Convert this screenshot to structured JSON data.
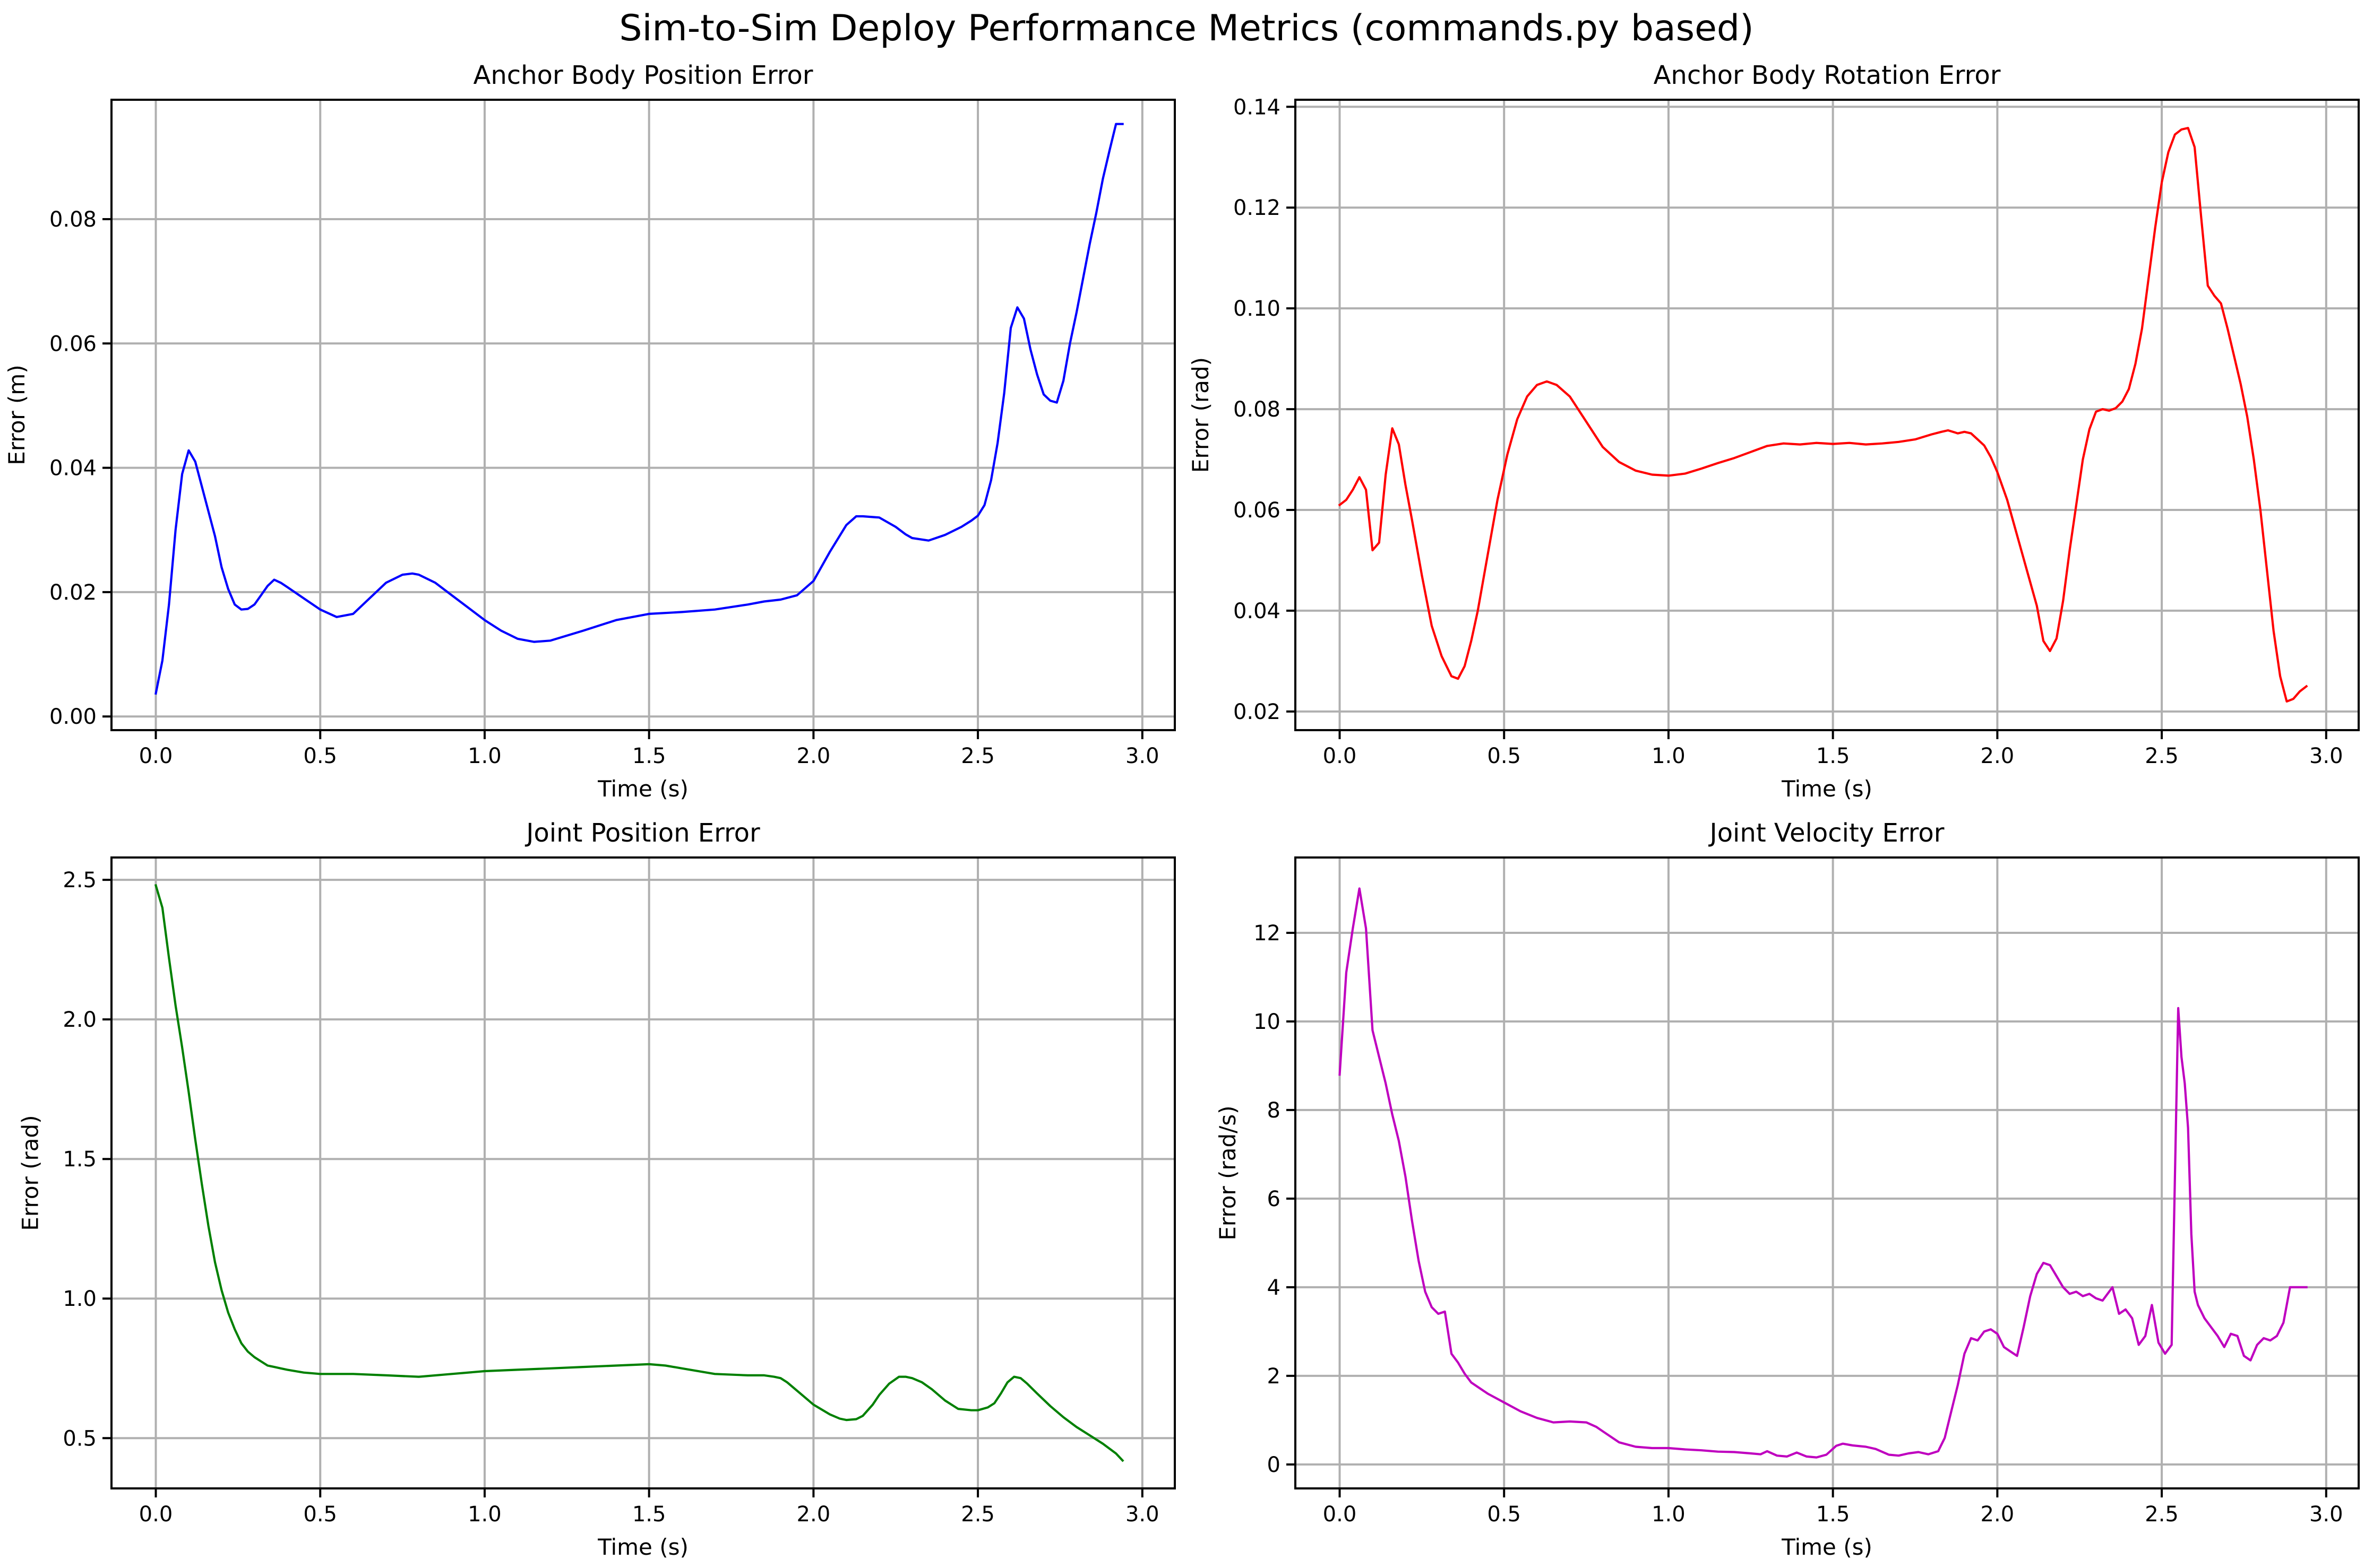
{
  "figure": {
    "suptitle": "Sim-to-Sim Deploy Performance Metrics (commands.py based)"
  },
  "chart_data": [
    {
      "type": "line",
      "title": "Anchor Body Position Error",
      "xlabel": "Time (s)",
      "ylabel": "Error (m)",
      "xlim": [
        -0.1348,
        3.0988
      ],
      "ylim": [
        -0.0022,
        0.0992
      ],
      "xticks": [
        "0.0",
        "0.5",
        "1.0",
        "1.5",
        "2.0",
        "2.5",
        "3.0"
      ],
      "yticks": [
        "0.00",
        "0.02",
        "0.04",
        "0.06",
        "0.08"
      ],
      "grid": true,
      "color": "#0000ff",
      "series": [
        {
          "x": [
            0.0,
            0.02,
            0.04,
            0.06,
            0.08,
            0.1,
            0.12,
            0.14,
            0.16,
            0.18,
            0.2,
            0.22,
            0.24,
            0.26,
            0.28,
            0.3,
            0.32,
            0.34,
            0.36,
            0.38,
            0.4,
            0.45,
            0.5,
            0.55,
            0.6,
            0.65,
            0.7,
            0.75,
            0.78,
            0.8,
            0.85,
            0.9,
            0.95,
            1.0,
            1.05,
            1.1,
            1.15,
            1.2,
            1.3,
            1.4,
            1.5,
            1.6,
            1.7,
            1.8,
            1.85,
            1.9,
            1.95,
            2.0,
            2.05,
            2.1,
            2.13,
            2.15,
            2.2,
            2.25,
            2.28,
            2.3,
            2.35,
            2.4,
            2.45,
            2.48,
            2.5,
            2.52,
            2.54,
            2.56,
            2.58,
            2.6,
            2.62,
            2.64,
            2.66,
            2.68,
            2.7,
            2.72,
            2.74,
            2.76,
            2.78,
            2.8,
            2.82,
            2.84,
            2.86,
            2.88,
            2.9,
            2.92,
            2.94
          ],
          "y": [
            0.0037,
            0.009,
            0.018,
            0.03,
            0.039,
            0.0428,
            0.041,
            0.037,
            0.033,
            0.029,
            0.024,
            0.0205,
            0.018,
            0.0172,
            0.0173,
            0.018,
            0.0195,
            0.021,
            0.022,
            0.0215,
            0.0208,
            0.019,
            0.0172,
            0.016,
            0.0165,
            0.019,
            0.0215,
            0.0228,
            0.023,
            0.0228,
            0.0215,
            0.0195,
            0.0175,
            0.0155,
            0.0138,
            0.0125,
            0.012,
            0.0122,
            0.0138,
            0.0155,
            0.0165,
            0.0168,
            0.0172,
            0.018,
            0.0185,
            0.0188,
            0.0195,
            0.0218,
            0.0265,
            0.0308,
            0.0322,
            0.0322,
            0.032,
            0.0305,
            0.0293,
            0.0287,
            0.0283,
            0.0292,
            0.0305,
            0.0315,
            0.0323,
            0.034,
            0.038,
            0.044,
            0.052,
            0.0625,
            0.0658,
            0.064,
            0.059,
            0.055,
            0.0518,
            0.0508,
            0.0505,
            0.054,
            0.06,
            0.065,
            0.0705,
            0.076,
            0.081,
            0.0865,
            0.091,
            0.0953,
            0.0953
          ]
        }
      ]
    },
    {
      "type": "line",
      "title": "Anchor Body Rotation Error",
      "xlabel": "Time (s)",
      "ylabel": "Error (rad)",
      "xlim": [
        -0.1348,
        3.0988
      ],
      "ylim": [
        0.0163,
        0.1414
      ],
      "xticks": [
        "0.0",
        "0.5",
        "1.0",
        "1.5",
        "2.0",
        "2.5",
        "3.0"
      ],
      "yticks": [
        "0.02",
        "0.04",
        "0.06",
        "0.08",
        "0.10",
        "0.12",
        "0.14"
      ],
      "grid": true,
      "color": "#ff0000",
      "series": [
        {
          "x": [
            0.0,
            0.02,
            0.04,
            0.06,
            0.08,
            0.1,
            0.12,
            0.14,
            0.16,
            0.18,
            0.2,
            0.22,
            0.25,
            0.28,
            0.31,
            0.34,
            0.36,
            0.38,
            0.4,
            0.42,
            0.45,
            0.48,
            0.51,
            0.54,
            0.57,
            0.6,
            0.63,
            0.66,
            0.7,
            0.75,
            0.8,
            0.85,
            0.9,
            0.95,
            1.0,
            1.05,
            1.1,
            1.15,
            1.2,
            1.25,
            1.3,
            1.35,
            1.4,
            1.45,
            1.5,
            1.55,
            1.6,
            1.65,
            1.7,
            1.75,
            1.8,
            1.83,
            1.85,
            1.88,
            1.9,
            1.92,
            1.94,
            1.96,
            1.98,
            2.0,
            2.03,
            2.06,
            2.09,
            2.12,
            2.14,
            2.16,
            2.18,
            2.2,
            2.22,
            2.24,
            2.26,
            2.28,
            2.3,
            2.32,
            2.34,
            2.36,
            2.38,
            2.4,
            2.42,
            2.44,
            2.46,
            2.48,
            2.5,
            2.52,
            2.54,
            2.56,
            2.58,
            2.6,
            2.62,
            2.64,
            2.66,
            2.68,
            2.7,
            2.72,
            2.74,
            2.76,
            2.78,
            2.8,
            2.82,
            2.84,
            2.86,
            2.88,
            2.9,
            2.92,
            2.94
          ],
          "y": [
            0.061,
            0.062,
            0.064,
            0.0665,
            0.064,
            0.052,
            0.0535,
            0.067,
            0.0762,
            0.073,
            0.065,
            0.058,
            0.047,
            0.037,
            0.031,
            0.027,
            0.0265,
            0.029,
            0.034,
            0.04,
            0.051,
            0.062,
            0.071,
            0.078,
            0.0825,
            0.0848,
            0.0855,
            0.0848,
            0.0825,
            0.0775,
            0.0725,
            0.0695,
            0.0678,
            0.067,
            0.0668,
            0.0672,
            0.0682,
            0.0693,
            0.0703,
            0.0715,
            0.0727,
            0.0732,
            0.073,
            0.0733,
            0.0731,
            0.0733,
            0.073,
            0.0732,
            0.0735,
            0.074,
            0.075,
            0.0755,
            0.0758,
            0.0752,
            0.0755,
            0.0752,
            0.074,
            0.0728,
            0.0705,
            0.0675,
            0.062,
            0.055,
            0.048,
            0.041,
            0.034,
            0.032,
            0.0345,
            0.042,
            0.052,
            0.061,
            0.07,
            0.076,
            0.0795,
            0.08,
            0.0797,
            0.0802,
            0.0815,
            0.084,
            0.089,
            0.096,
            0.106,
            0.116,
            0.125,
            0.131,
            0.1345,
            0.1355,
            0.1358,
            0.132,
            0.118,
            0.1045,
            0.1025,
            0.101,
            0.096,
            0.0905,
            0.085,
            0.0785,
            0.07,
            0.06,
            0.048,
            0.036,
            0.027,
            0.022,
            0.0225,
            0.024,
            0.025
          ]
        }
      ]
    },
    {
      "type": "line",
      "title": "Joint Position Error",
      "xlabel": "Time (s)",
      "ylabel": "Error (rad)",
      "xlim": [
        -0.1348,
        3.0988
      ],
      "ylim": [
        0.32,
        2.58
      ],
      "xticks": [
        "0.0",
        "0.5",
        "1.0",
        "1.5",
        "2.0",
        "2.5",
        "3.0"
      ],
      "yticks": [
        "0.5",
        "1.0",
        "1.5",
        "2.0",
        "2.5"
      ],
      "grid": true,
      "color": "#008000",
      "series": [
        {
          "x": [
            0.0,
            0.02,
            0.04,
            0.06,
            0.08,
            0.1,
            0.12,
            0.14,
            0.16,
            0.18,
            0.2,
            0.22,
            0.24,
            0.26,
            0.28,
            0.3,
            0.32,
            0.34,
            0.36,
            0.38,
            0.4,
            0.45,
            0.5,
            0.55,
            0.6,
            0.7,
            0.8,
            0.9,
            1.0,
            1.1,
            1.2,
            1.3,
            1.4,
            1.5,
            1.55,
            1.6,
            1.7,
            1.8,
            1.85,
            1.88,
            1.9,
            1.92,
            1.95,
            2.0,
            2.05,
            2.08,
            2.1,
            2.13,
            2.15,
            2.18,
            2.2,
            2.23,
            2.26,
            2.28,
            2.3,
            2.33,
            2.36,
            2.4,
            2.44,
            2.48,
            2.5,
            2.53,
            2.55,
            2.57,
            2.59,
            2.61,
            2.63,
            2.65,
            2.68,
            2.72,
            2.76,
            2.8,
            2.84,
            2.88,
            2.92,
            2.94
          ],
          "y": [
            2.48,
            2.4,
            2.22,
            2.05,
            1.9,
            1.74,
            1.57,
            1.41,
            1.26,
            1.13,
            1.03,
            0.95,
            0.89,
            0.84,
            0.81,
            0.79,
            0.775,
            0.76,
            0.755,
            0.75,
            0.745,
            0.735,
            0.73,
            0.73,
            0.73,
            0.725,
            0.72,
            0.73,
            0.74,
            0.745,
            0.75,
            0.755,
            0.76,
            0.765,
            0.76,
            0.75,
            0.73,
            0.725,
            0.725,
            0.72,
            0.715,
            0.7,
            0.67,
            0.62,
            0.585,
            0.57,
            0.565,
            0.568,
            0.58,
            0.62,
            0.655,
            0.695,
            0.72,
            0.72,
            0.715,
            0.7,
            0.675,
            0.635,
            0.605,
            0.6,
            0.6,
            0.61,
            0.625,
            0.66,
            0.7,
            0.72,
            0.715,
            0.695,
            0.66,
            0.615,
            0.575,
            0.54,
            0.51,
            0.48,
            0.445,
            0.42
          ]
        }
      ]
    },
    {
      "type": "line",
      "title": "Joint Velocity Error",
      "xlabel": "Time (s)",
      "ylabel": "Error (rad/s)",
      "xlim": [
        -0.1348,
        3.0988
      ],
      "ylim": [
        -0.54,
        13.7
      ],
      "xticks": [
        "0.0",
        "0.5",
        "1.0",
        "1.5",
        "2.0",
        "2.5",
        "3.0"
      ],
      "yticks": [
        "0",
        "2",
        "4",
        "6",
        "8",
        "10",
        "12"
      ],
      "grid": true,
      "color": "#bf00bf",
      "series": [
        {
          "x": [
            0.0,
            0.02,
            0.04,
            0.06,
            0.08,
            0.1,
            0.12,
            0.14,
            0.16,
            0.18,
            0.2,
            0.22,
            0.24,
            0.26,
            0.28,
            0.3,
            0.32,
            0.34,
            0.36,
            0.38,
            0.4,
            0.45,
            0.5,
            0.55,
            0.6,
            0.65,
            0.7,
            0.75,
            0.78,
            0.8,
            0.85,
            0.9,
            0.95,
            1.0,
            1.05,
            1.1,
            1.15,
            1.2,
            1.25,
            1.28,
            1.3,
            1.33,
            1.36,
            1.39,
            1.42,
            1.45,
            1.48,
            1.51,
            1.53,
            1.56,
            1.6,
            1.63,
            1.67,
            1.7,
            1.73,
            1.76,
            1.79,
            1.82,
            1.84,
            1.86,
            1.88,
            1.9,
            1.92,
            1.94,
            1.96,
            1.98,
            2.0,
            2.02,
            2.04,
            2.06,
            2.08,
            2.1,
            2.12,
            2.14,
            2.16,
            2.18,
            2.2,
            2.22,
            2.24,
            2.26,
            2.28,
            2.3,
            2.32,
            2.34,
            2.35,
            2.37,
            2.39,
            2.41,
            2.43,
            2.45,
            2.47,
            2.49,
            2.51,
            2.53,
            2.55,
            2.56,
            2.57,
            2.58,
            2.59,
            2.6,
            2.61,
            2.62,
            2.63,
            2.65,
            2.67,
            2.69,
            2.71,
            2.73,
            2.75,
            2.77,
            2.79,
            2.81,
            2.83,
            2.85,
            2.87,
            2.89,
            2.91,
            2.94
          ],
          "y": [
            8.8,
            11.1,
            12.1,
            13.0,
            12.1,
            9.8,
            9.2,
            8.6,
            7.9,
            7.3,
            6.5,
            5.5,
            4.6,
            3.9,
            3.55,
            3.4,
            3.45,
            2.5,
            2.3,
            2.05,
            1.85,
            1.6,
            1.4,
            1.2,
            1.05,
            0.95,
            0.97,
            0.95,
            0.85,
            0.75,
            0.5,
            0.4,
            0.37,
            0.37,
            0.34,
            0.32,
            0.29,
            0.28,
            0.25,
            0.23,
            0.3,
            0.2,
            0.18,
            0.27,
            0.18,
            0.16,
            0.22,
            0.42,
            0.47,
            0.43,
            0.4,
            0.35,
            0.22,
            0.2,
            0.25,
            0.28,
            0.23,
            0.3,
            0.6,
            1.2,
            1.8,
            2.5,
            2.85,
            2.8,
            3.0,
            3.05,
            2.95,
            2.65,
            2.55,
            2.45,
            3.1,
            3.8,
            4.3,
            4.55,
            4.5,
            4.25,
            4.0,
            3.85,
            3.9,
            3.8,
            3.85,
            3.75,
            3.7,
            3.9,
            4.0,
            3.4,
            3.5,
            3.3,
            2.7,
            2.9,
            3.6,
            2.75,
            2.5,
            2.7,
            10.3,
            9.2,
            8.6,
            7.6,
            5.2,
            3.9,
            3.6,
            3.45,
            3.3,
            3.1,
            2.9,
            2.65,
            2.95,
            2.9,
            2.45,
            2.35,
            2.7,
            2.85,
            2.8,
            2.9,
            3.2,
            4.0,
            4.0,
            4.0
          ]
        }
      ]
    }
  ]
}
